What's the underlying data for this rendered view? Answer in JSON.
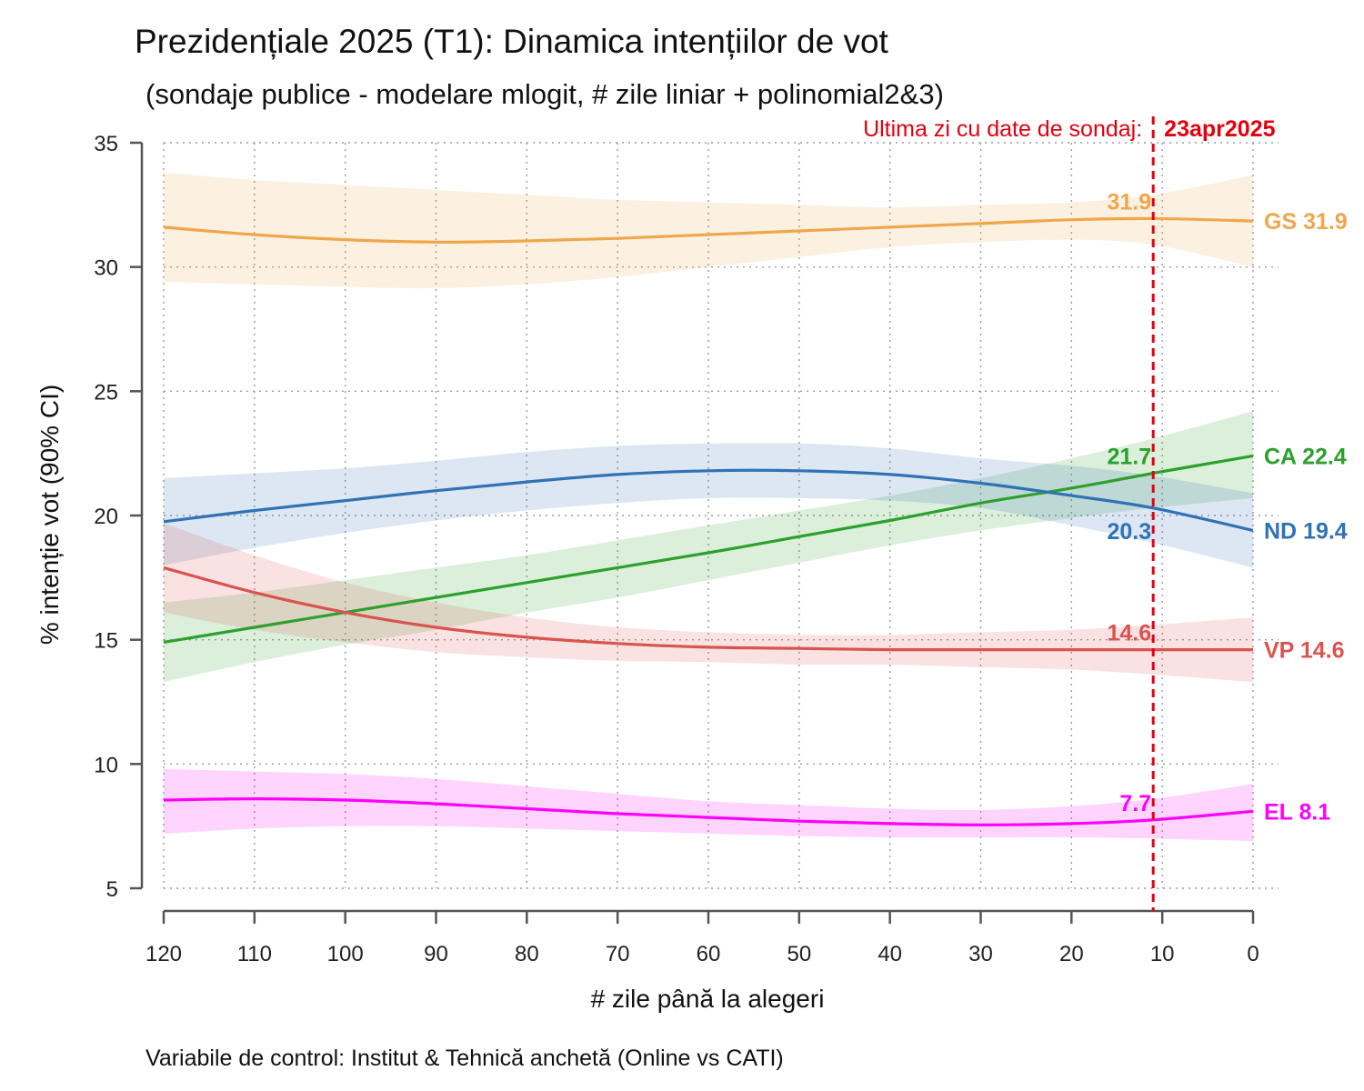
{
  "chart_data": {
    "type": "line",
    "title": "Prezidențiale 2025 (T1): Dinamica intențiilor de vot",
    "subtitle": "(sondaje publice - modelare mlogit, # zile liniar + polinomial2&3)",
    "xlabel": "# zile până la alegeri",
    "ylabel": "% intenție vot (90% CI)",
    "note": "Variabile de control: Institut & Tehnică anchetă (Online vs CATI)",
    "xlim": [
      120,
      0
    ],
    "ylim": [
      5,
      35
    ],
    "x_ticks": [
      120,
      110,
      100,
      90,
      80,
      70,
      60,
      50,
      40,
      30,
      20,
      10,
      0
    ],
    "y_ticks": [
      5,
      10,
      15,
      20,
      25,
      30,
      35
    ],
    "grid": true,
    "reference_line": {
      "x": 11,
      "label_prefix": "Ultima zi cu date de sondaj:",
      "label_date": "23apr2025",
      "color": "#e3000f"
    },
    "x": [
      120,
      110,
      100,
      90,
      80,
      70,
      60,
      50,
      40,
      30,
      20,
      11,
      0
    ],
    "series": [
      {
        "name": "GS",
        "color": "#f0a64b",
        "end_label": "GS 31.9",
        "day_label": "31.9",
        "values": [
          31.6,
          31.3,
          31.1,
          31.0,
          31.05,
          31.15,
          31.3,
          31.45,
          31.6,
          31.75,
          31.9,
          31.95,
          31.85
        ],
        "lower": [
          29.4,
          29.3,
          29.2,
          29.15,
          29.3,
          29.6,
          30.0,
          30.4,
          30.8,
          31.0,
          31.1,
          30.9,
          30.0
        ],
        "upper": [
          33.8,
          33.5,
          33.3,
          33.1,
          32.9,
          32.7,
          32.6,
          32.5,
          32.4,
          32.5,
          32.6,
          32.9,
          33.7
        ]
      },
      {
        "name": "CA",
        "color": "#2ca02c",
        "end_label": "CA 22.4",
        "day_label": "21.7",
        "values": [
          14.9,
          15.5,
          16.1,
          16.7,
          17.3,
          17.9,
          18.5,
          19.15,
          19.8,
          20.5,
          21.1,
          21.7,
          22.4
        ],
        "lower": [
          13.3,
          14.1,
          14.8,
          15.4,
          16.1,
          16.7,
          17.4,
          18.1,
          18.8,
          19.4,
          19.9,
          20.3,
          20.7
        ],
        "upper": [
          16.5,
          16.9,
          17.4,
          17.9,
          18.4,
          19.0,
          19.6,
          20.2,
          20.8,
          21.5,
          22.3,
          23.1,
          24.2
        ]
      },
      {
        "name": "ND",
        "color": "#2f73b5",
        "end_label": "ND 19.4",
        "day_label": "20.3",
        "values": [
          19.75,
          20.2,
          20.6,
          21.0,
          21.35,
          21.65,
          21.8,
          21.8,
          21.65,
          21.3,
          20.8,
          20.3,
          19.4
        ],
        "lower": [
          18.0,
          18.7,
          19.3,
          19.8,
          20.2,
          20.5,
          20.7,
          20.7,
          20.6,
          20.3,
          19.6,
          18.9,
          17.9
        ],
        "upper": [
          21.5,
          21.7,
          21.9,
          22.2,
          22.55,
          22.8,
          22.9,
          22.9,
          22.7,
          22.3,
          22.0,
          21.6,
          20.9
        ]
      },
      {
        "name": "VP",
        "color": "#d9534f",
        "end_label": "VP 14.6",
        "day_label": "14.6",
        "values": [
          17.9,
          16.9,
          16.1,
          15.5,
          15.1,
          14.85,
          14.7,
          14.65,
          14.6,
          14.6,
          14.6,
          14.6,
          14.6
        ],
        "lower": [
          16.1,
          15.4,
          14.9,
          14.5,
          14.3,
          14.15,
          14.1,
          14.0,
          14.0,
          13.9,
          13.8,
          13.6,
          13.3
        ],
        "upper": [
          19.7,
          18.4,
          17.3,
          16.5,
          15.9,
          15.5,
          15.3,
          15.2,
          15.2,
          15.3,
          15.4,
          15.6,
          15.9
        ]
      },
      {
        "name": "EL",
        "color": "#ff00ff",
        "end_label": "EL 8.1",
        "day_label": "7.7",
        "values": [
          8.55,
          8.6,
          8.55,
          8.4,
          8.2,
          8.0,
          7.85,
          7.7,
          7.6,
          7.55,
          7.6,
          7.75,
          8.1
        ],
        "lower": [
          7.2,
          7.4,
          7.5,
          7.5,
          7.4,
          7.3,
          7.2,
          7.1,
          7.05,
          7.05,
          7.05,
          7.0,
          6.9
        ],
        "upper": [
          9.8,
          9.7,
          9.6,
          9.4,
          9.1,
          8.8,
          8.5,
          8.35,
          8.2,
          8.15,
          8.3,
          8.6,
          9.2
        ]
      }
    ]
  }
}
